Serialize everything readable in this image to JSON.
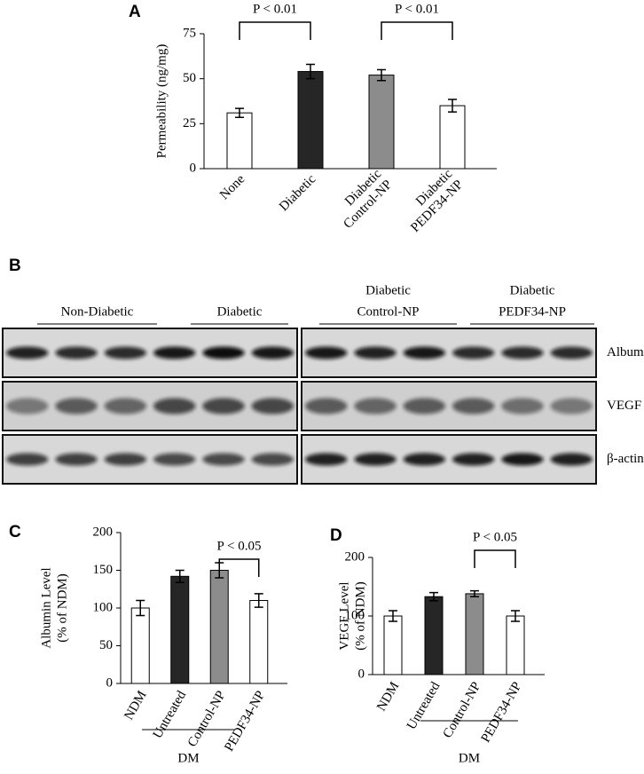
{
  "chart_data": [
    {
      "type": "bar",
      "label": "A",
      "ylabel": [
        "Permeability  (ng/mg)"
      ],
      "categories": [
        [
          "None"
        ],
        [
          "Diabetic"
        ],
        [
          "Diabetic",
          "Control-NP"
        ],
        [
          "Diabetic",
          "PEDF34-NP"
        ]
      ],
      "values": [
        31,
        54,
        52,
        35
      ],
      "errors": [
        2.5,
        4,
        3,
        3.5
      ],
      "colors": [
        "#ffffff",
        "#262626",
        "#8c8c8c",
        "#ffffff"
      ],
      "ylim": [
        0,
        75
      ],
      "yticks": [
        0,
        25,
        50,
        75
      ],
      "annotations": [
        "P < 0.01",
        "P < 0.01"
      ]
    },
    {
      "type": "bar",
      "label": "C",
      "ylabel": [
        "Albumin  Level",
        "(% of NDM)"
      ],
      "categories": [
        [
          "NDM"
        ],
        [
          "Untreated"
        ],
        [
          "Control-NP"
        ],
        [
          "PEDF34-NP"
        ]
      ],
      "values": [
        100,
        142,
        150,
        110
      ],
      "errors": [
        10,
        8,
        10,
        9
      ],
      "colors": [
        "#ffffff",
        "#262626",
        "#8c8c8c",
        "#ffffff"
      ],
      "ylim": [
        0,
        200
      ],
      "yticks": [
        0,
        50,
        100,
        150,
        200
      ],
      "annotations": [
        "P < 0.05"
      ],
      "group_label": "DM"
    },
    {
      "type": "bar",
      "label": "D",
      "ylabel": [
        "VEGF Level",
        "(% of NDM)"
      ],
      "categories": [
        [
          "NDM"
        ],
        [
          "Untreated"
        ],
        [
          "Control-NP"
        ],
        [
          "PEDF34-NP"
        ]
      ],
      "values": [
        100,
        133,
        138,
        100
      ],
      "errors": [
        9,
        7,
        5,
        9
      ],
      "colors": [
        "#ffffff",
        "#262626",
        "#8c8c8c",
        "#ffffff"
      ],
      "ylim": [
        0,
        200
      ],
      "yticks": [
        0,
        100,
        200
      ],
      "annotations": [
        "P < 0.05"
      ],
      "group_label": "DM"
    }
  ],
  "blot": {
    "label": "B",
    "groups": [
      [
        "Non-Diabetic"
      ],
      [
        "Diabetic"
      ],
      [
        "Diabetic",
        "Control-NP"
      ],
      [
        "Diabetic",
        "PEDF34-NP"
      ]
    ],
    "rows": [
      "Albumin",
      "VEGF",
      "β-actin"
    ]
  }
}
